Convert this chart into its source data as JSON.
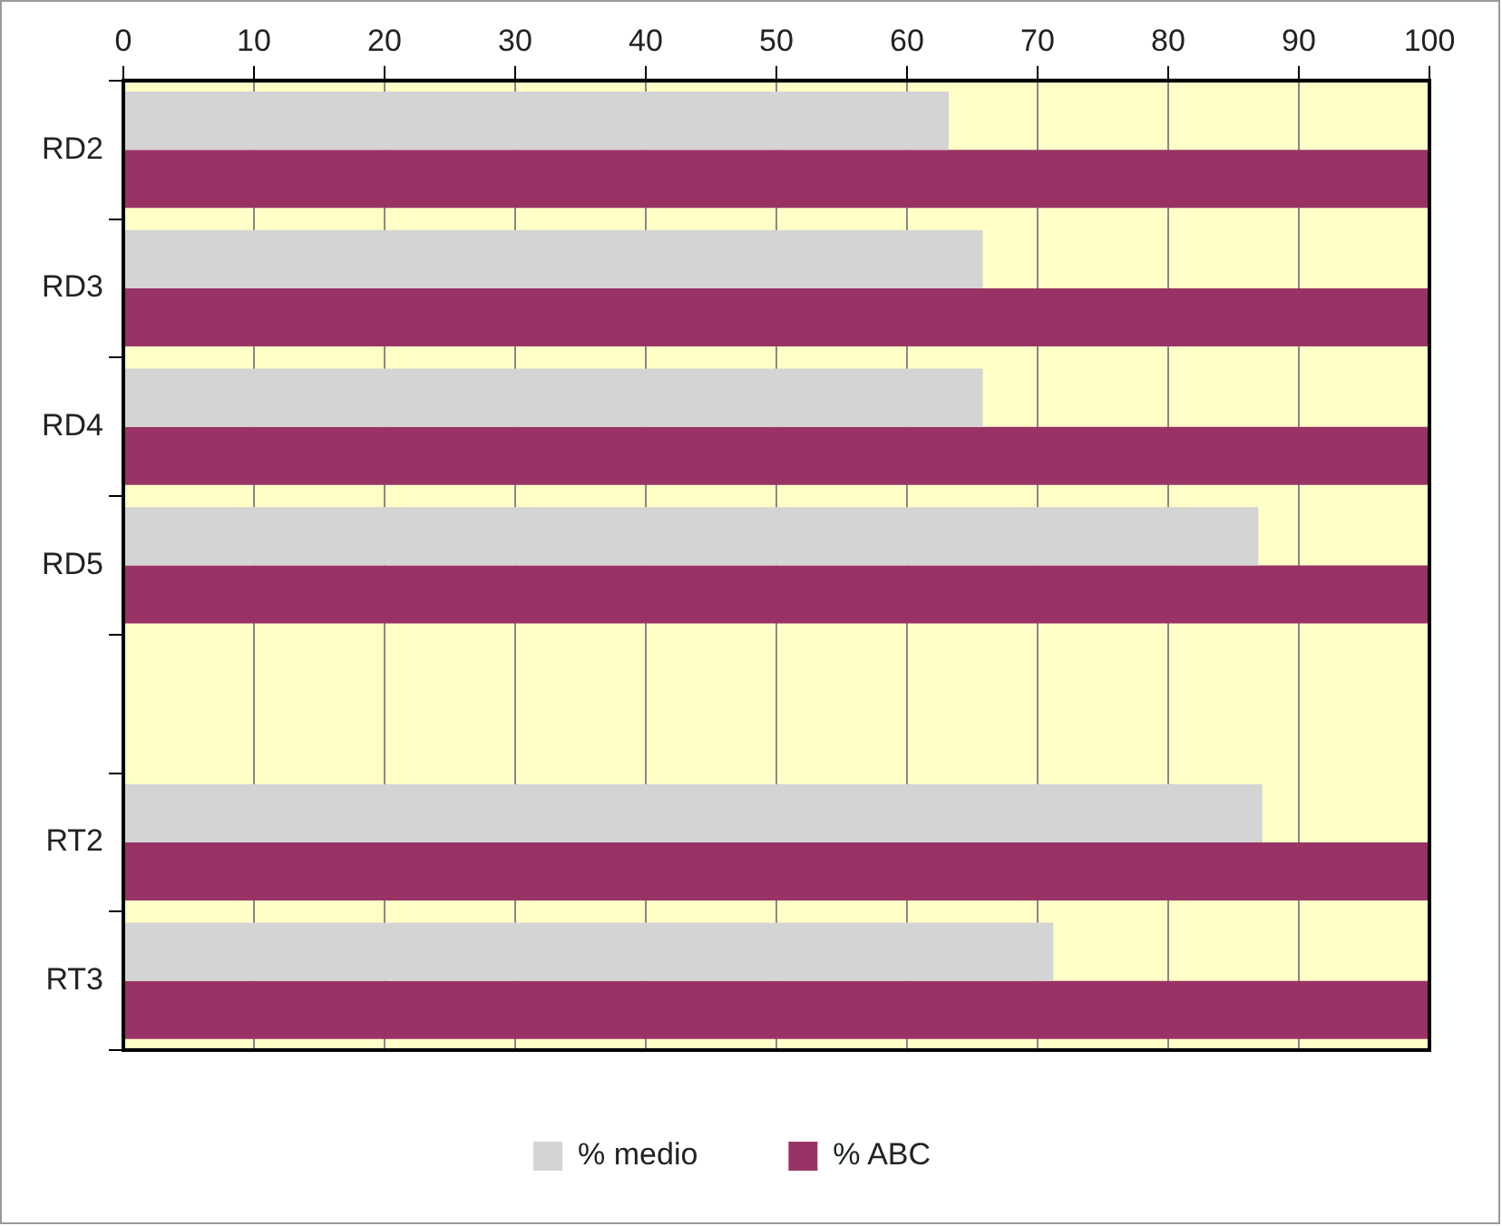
{
  "chart_data": {
    "type": "bar",
    "orientation": "horizontal",
    "categories": [
      "RD2",
      "RD3",
      "RD4",
      "RD5",
      null,
      "RT2",
      "RT3"
    ],
    "series": [
      {
        "name": "% medio",
        "color": "#d4d4d4",
        "values": [
          63.2,
          65.8,
          65.8,
          86.9,
          null,
          87.2,
          71.2
        ]
      },
      {
        "name": "% ABC",
        "color": "#993366",
        "values": [
          100,
          100,
          100,
          100,
          null,
          100,
          100
        ]
      }
    ],
    "xlim": [
      0,
      100
    ],
    "xticks": [
      0,
      10,
      20,
      30,
      40,
      50,
      60,
      70,
      80,
      90,
      100
    ],
    "grid": "x",
    "legend": "bottom"
  }
}
